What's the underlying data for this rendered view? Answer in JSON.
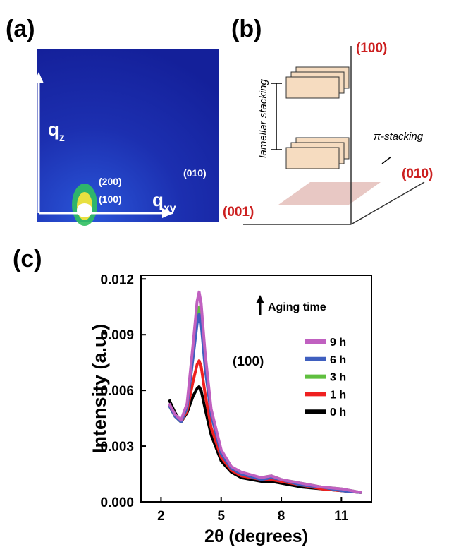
{
  "panel_a": {
    "label": "(a)",
    "z_axis": "q",
    "z_axis_sub": "z",
    "xy_axis": "q",
    "xy_axis_sub": "xy",
    "peak_200": "(200)",
    "peak_100": "(100)",
    "peak_010": "(010)"
  },
  "panel_b": {
    "label": "(b)",
    "axis_100": "(100)",
    "axis_010": "(010)",
    "axis_001": "(001)",
    "lamellar": "lamellar stacking",
    "pi": "π-stacking"
  },
  "chart_data": {
    "type": "line",
    "label": "(c)",
    "xlabel": "2θ (degrees)",
    "ylabel": "Intensity (a.u.)",
    "annotation": "(100)",
    "legend_title": "Aging time",
    "xlim": [
      1,
      12.5
    ],
    "xticks": [
      2,
      5,
      8,
      11
    ],
    "ylim": [
      0,
      0.0122
    ],
    "yticks": [
      {
        "value": 0,
        "label": "0.000"
      },
      0.003,
      0.006,
      0.009,
      0.012
    ],
    "x": [
      2.4,
      2.7,
      3.0,
      3.3,
      3.6,
      3.8,
      3.9,
      4.0,
      4.2,
      4.5,
      5,
      5.5,
      6,
      7,
      7.5,
      8,
      9,
      10,
      11,
      12
    ],
    "series": [
      {
        "name": "9 h",
        "color": "#c060c0",
        "values": [
          0.0053,
          0.0047,
          0.0044,
          0.0053,
          0.0085,
          0.0108,
          0.0113,
          0.0107,
          0.008,
          0.005,
          0.0028,
          0.0019,
          0.0016,
          0.0013,
          0.0014,
          0.0012,
          0.001,
          0.0008,
          0.0007,
          0.0005
        ]
      },
      {
        "name": "6 h",
        "color": "#3f5fbf",
        "values": [
          0.0052,
          0.0046,
          0.0043,
          0.0051,
          0.0078,
          0.0096,
          0.0101,
          0.0096,
          0.0072,
          0.0047,
          0.0026,
          0.0018,
          0.0015,
          0.0012,
          0.0013,
          0.0012,
          0.0009,
          0.0008,
          0.0006,
          0.0005
        ]
      },
      {
        "name": "3 h",
        "color": "#5fbf3f",
        "values": [
          0.0052,
          0.0046,
          0.0043,
          0.0051,
          0.008,
          0.01,
          0.0105,
          0.01,
          0.0075,
          0.0048,
          0.0027,
          0.0019,
          0.0015,
          0.0013,
          0.0014,
          0.0012,
          0.001,
          0.0008,
          0.0007,
          0.0005
        ]
      },
      {
        "name": "1 h",
        "color": "#ef2020",
        "values": [
          0.0052,
          0.0046,
          0.0043,
          0.0049,
          0.0065,
          0.0074,
          0.0076,
          0.0073,
          0.0058,
          0.004,
          0.0024,
          0.0017,
          0.0014,
          0.0012,
          0.0012,
          0.0011,
          0.0009,
          0.0007,
          0.0006,
          0.0005
        ]
      },
      {
        "name": "0 h",
        "color": "#000000",
        "values": [
          0.0055,
          0.0048,
          0.0043,
          0.0048,
          0.0057,
          0.0061,
          0.0062,
          0.006,
          0.005,
          0.0036,
          0.0022,
          0.0016,
          0.0013,
          0.0011,
          0.0011,
          0.001,
          0.0008,
          0.0007,
          0.0006,
          0.0005
        ]
      }
    ]
  }
}
